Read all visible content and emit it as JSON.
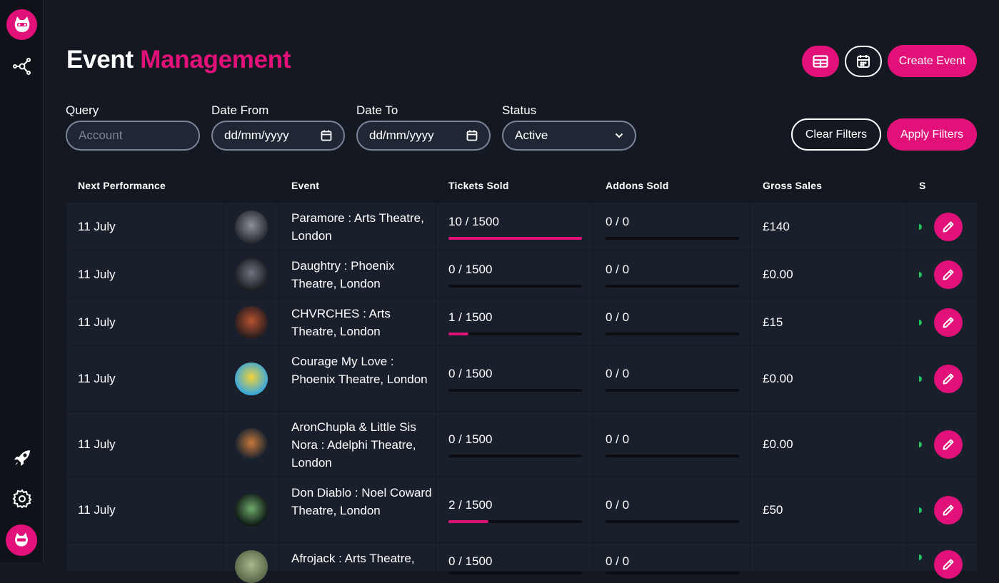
{
  "header": {
    "title": "Event",
    "title_accent": "Management"
  },
  "actions": {
    "create_label": "Create Event",
    "clear_label": "Clear Filters",
    "apply_label": "Apply Filters"
  },
  "filters": {
    "query": {
      "label": "Query",
      "placeholder": "Account"
    },
    "date_from": {
      "label": "Date From",
      "value": "dd/mm/yyyy"
    },
    "date_to": {
      "label": "Date To",
      "value": "dd/mm/yyyy"
    },
    "status": {
      "label": "Status",
      "value": "Active"
    }
  },
  "table": {
    "columns": [
      "Next Performance",
      "Event",
      "Tickets Sold",
      "Addons Sold",
      "Gross Sales",
      "S"
    ],
    "rows": [
      {
        "date": "11 July",
        "event": "Paramore : Arts Theatre, London",
        "tickets": "10 / 1500",
        "tickets_fraction": 1.0,
        "addons": "0 / 0",
        "gross": "£140"
      },
      {
        "date": "11 July",
        "event": "Daughtry : Phoenix Theatre, London",
        "tickets": "0 / 1500",
        "tickets_fraction": 0,
        "addons": "0 / 0",
        "gross": "£0.00"
      },
      {
        "date": "11 July",
        "event": "CHVRCHES : Arts Theatre, London",
        "tickets": "1 / 1500",
        "tickets_fraction": 0.15,
        "addons": "0 / 0",
        "gross": "£15"
      },
      {
        "date": "11 July",
        "event": "Courage My Love : Phoenix Theatre, London",
        "tickets": "0 / 1500",
        "tickets_fraction": 0,
        "addons": "0 / 0",
        "gross": "£0.00"
      },
      {
        "date": "11 July",
        "event": "AronChupla & Little Sis Nora : Adelphi Theatre, London",
        "tickets": "0 / 1500",
        "tickets_fraction": 0,
        "addons": "0 / 0",
        "gross": "£0.00"
      },
      {
        "date": "11 July",
        "event": "Don Diablo : Noel Coward Theatre, London",
        "tickets": "2 / 1500",
        "tickets_fraction": 0.3,
        "addons": "0 / 0",
        "gross": "£50"
      },
      {
        "date": "",
        "event": "Afrojack : Arts Theatre,",
        "tickets": "0 / 1500",
        "tickets_fraction": 0,
        "addons": "0 / 0",
        "gross": ""
      }
    ]
  },
  "colors": {
    "accent": "#e2117a",
    "background": "#141821",
    "row": "#1a202b",
    "status_active": "#21c55d"
  }
}
